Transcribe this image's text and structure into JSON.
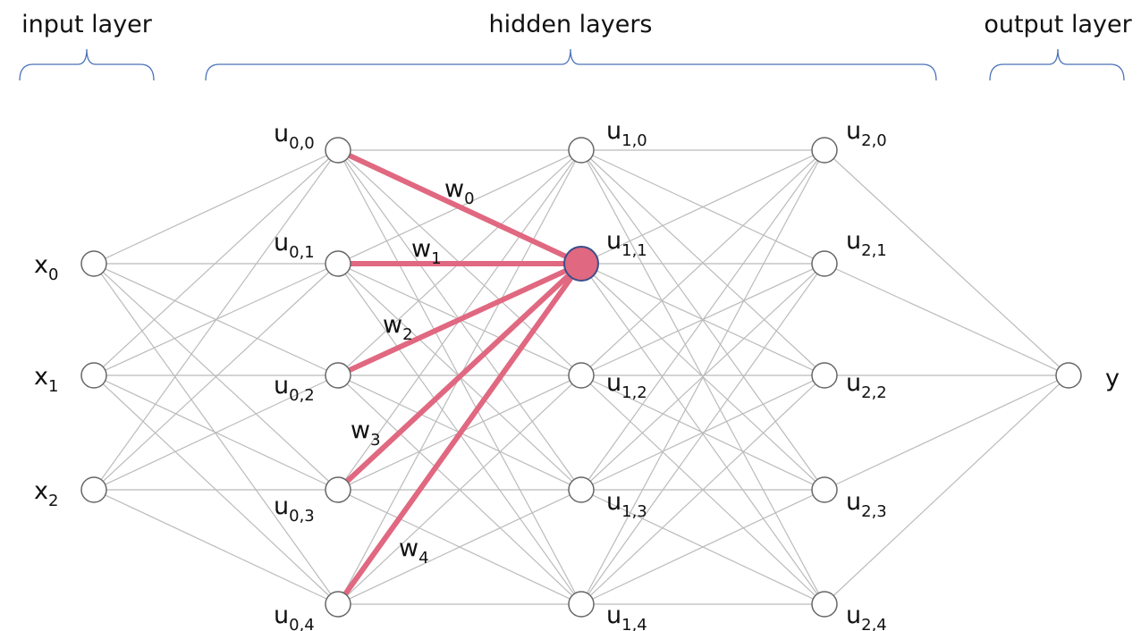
{
  "layer_titles": [
    "input layer",
    "hidden layers",
    "output layer"
  ],
  "layers": [
    {
      "nodes": [
        {
          "base": "x",
          "sub": "0"
        },
        {
          "base": "x",
          "sub": "1"
        },
        {
          "base": "x",
          "sub": "2"
        }
      ]
    },
    {
      "nodes": [
        {
          "base": "u",
          "sub": "0,0"
        },
        {
          "base": "u",
          "sub": "0,1"
        },
        {
          "base": "u",
          "sub": "0,2"
        },
        {
          "base": "u",
          "sub": "0,3"
        },
        {
          "base": "u",
          "sub": "0,4"
        }
      ]
    },
    {
      "nodes": [
        {
          "base": "u",
          "sub": "1,0"
        },
        {
          "base": "u",
          "sub": "1,1"
        },
        {
          "base": "u",
          "sub": "1,2"
        },
        {
          "base": "u",
          "sub": "1,3"
        },
        {
          "base": "u",
          "sub": "1,4"
        }
      ]
    },
    {
      "nodes": [
        {
          "base": "u",
          "sub": "2,0"
        },
        {
          "base": "u",
          "sub": "2,1"
        },
        {
          "base": "u",
          "sub": "2,2"
        },
        {
          "base": "u",
          "sub": "2,3"
        },
        {
          "base": "u",
          "sub": "2,4"
        }
      ]
    },
    {
      "nodes": [
        {
          "base": "y"
        }
      ]
    }
  ],
  "weights": [
    {
      "base": "w",
      "sub": "0"
    },
    {
      "base": "w",
      "sub": "1"
    },
    {
      "base": "w",
      "sub": "2"
    },
    {
      "base": "w",
      "sub": "3"
    },
    {
      "base": "w",
      "sub": "4"
    }
  ]
}
